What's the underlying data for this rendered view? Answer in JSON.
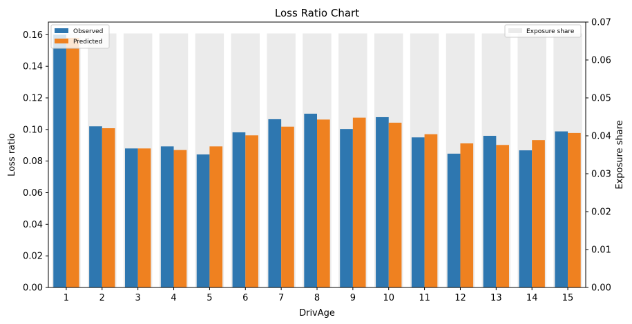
{
  "chart_data": {
    "type": "bar",
    "title": "Loss Ratio Chart",
    "xlabel": "DrivAge",
    "ylabel": "Loss ratio",
    "y2label": "Exposure share",
    "categories": [
      "1",
      "2",
      "3",
      "4",
      "5",
      "6",
      "7",
      "8",
      "9",
      "10",
      "11",
      "12",
      "13",
      "14",
      "15"
    ],
    "ylim": [
      0,
      0.168
    ],
    "y2lim": [
      0,
      0.07
    ],
    "yticks": [
      "0.00",
      "0.02",
      "0.04",
      "0.06",
      "0.08",
      "0.10",
      "0.12",
      "0.14",
      "0.16"
    ],
    "y2ticks": [
      "0.00",
      "0.01",
      "0.02",
      "0.03",
      "0.04",
      "0.05",
      "0.06",
      "0.07"
    ],
    "series": [
      {
        "name": "Observed",
        "axis": "left",
        "color": "#2e77b0",
        "values": [
          0.16,
          0.102,
          0.088,
          0.0893,
          0.0842,
          0.0982,
          0.1065,
          0.11,
          0.1003,
          0.1078,
          0.095,
          0.0847,
          0.096,
          0.0868,
          0.0988
        ]
      },
      {
        "name": "Predicted",
        "axis": "left",
        "color": "#ef8120",
        "values": [
          0.158,
          0.1008,
          0.088,
          0.087,
          0.0893,
          0.0963,
          0.1018,
          0.1063,
          0.1075,
          0.1043,
          0.097,
          0.0912,
          0.0902,
          0.0933,
          0.0978
        ]
      },
      {
        "name": "Exposure share",
        "axis": "right",
        "color": "#ebebeb",
        "values": [
          0.067,
          0.067,
          0.067,
          0.067,
          0.067,
          0.067,
          0.067,
          0.067,
          0.067,
          0.067,
          0.067,
          0.067,
          0.067,
          0.067,
          0.067
        ]
      }
    ],
    "legend_left": [
      "Observed",
      "Predicted"
    ],
    "legend_left_placement": "top-left",
    "legend_right": [
      "Exposure share"
    ],
    "legend_right_placement": "top-right",
    "grid": false
  }
}
